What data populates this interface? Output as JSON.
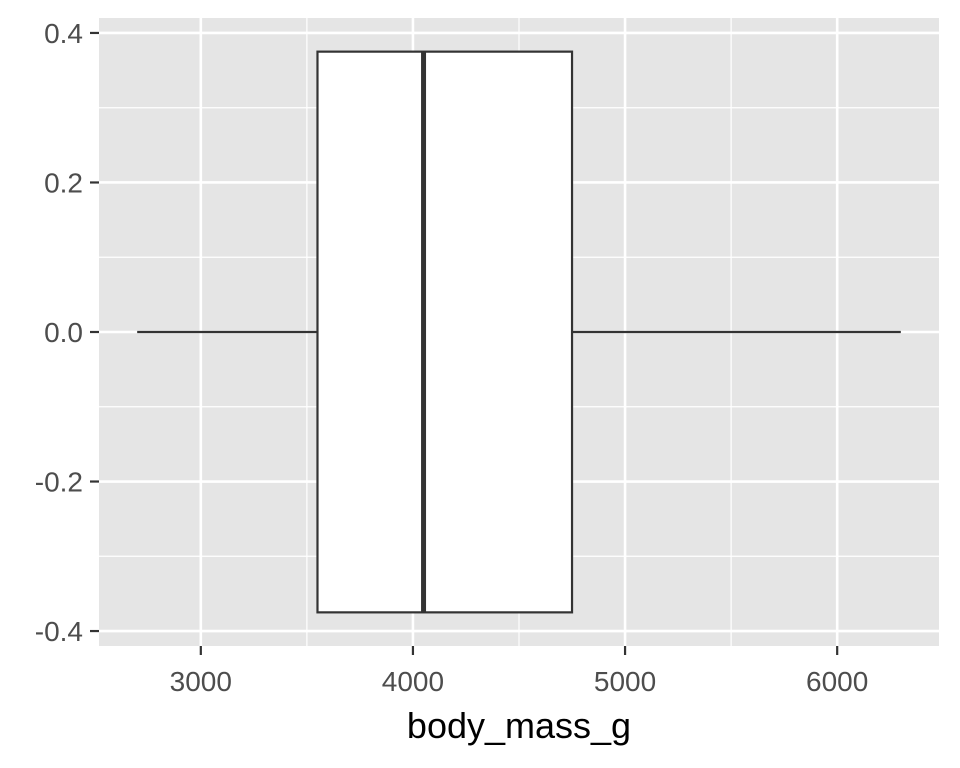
{
  "chart_data": {
    "type": "boxplot",
    "title": "",
    "xlabel": "body_mass_g",
    "ylabel": "",
    "xlim": [
      2520,
      6480
    ],
    "ylim": [
      -0.42,
      0.42
    ],
    "x_ticks": [
      3000,
      4000,
      5000,
      6000
    ],
    "x_tick_labels": [
      "3000",
      "4000",
      "5000",
      "6000"
    ],
    "y_ticks": [
      -0.4,
      -0.2,
      0.0,
      0.2,
      0.4
    ],
    "y_tick_labels": [
      "-0.4",
      "-0.2",
      "0.0",
      "0.2",
      "0.4"
    ],
    "grid": true,
    "box": {
      "min": 2700,
      "q1": 3550,
      "median": 4050,
      "q3": 4750,
      "max": 6300,
      "y_center": 0.0,
      "y_half_width": 0.375
    },
    "colors": {
      "panel": "#e5e5e5",
      "grid": "#ffffff",
      "box_fill": "#ffffff",
      "box_stroke": "#333333",
      "tick_mark": "#333333",
      "tick_label": "#4d4d4d"
    }
  }
}
